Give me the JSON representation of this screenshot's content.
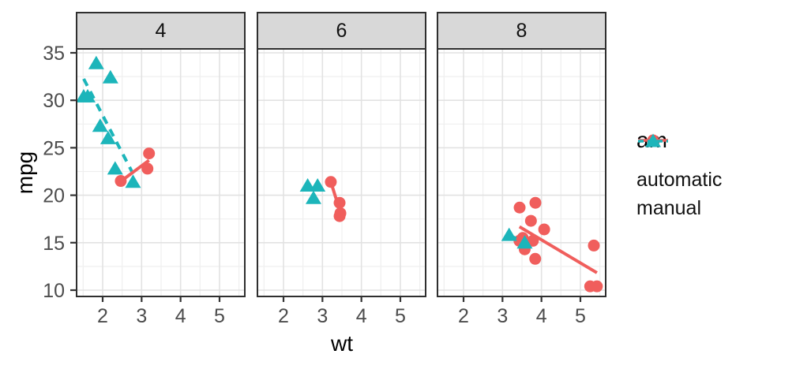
{
  "chart_data": {
    "type": "scatter",
    "title": "",
    "xlabel": "wt",
    "ylabel": "mpg",
    "grid": true,
    "x_ticks": [
      2,
      3,
      4,
      5
    ],
    "y_ticks": [
      35,
      30,
      25,
      20,
      15,
      10
    ],
    "x_minor_ticks": [
      1.5,
      2.5,
      3.5,
      4.5,
      5.5
    ],
    "y_minor_ticks": [
      12.5,
      17.5,
      22.5,
      27.5,
      32.5
    ],
    "xlim": [
      1.33,
      5.65
    ],
    "ylim": [
      9.34,
      35.33
    ],
    "series_colors": {
      "automatic": "#F05E5C",
      "manual": "#1CB5BA"
    },
    "legend": {
      "title": "am",
      "position": "right",
      "entries": [
        {
          "label": "automatic",
          "shape": "circle",
          "linetype": "solid",
          "color": "#F05E5C"
        },
        {
          "label": "manual",
          "shape": "triangle",
          "linetype": "dashed",
          "color": "#1CB5BA"
        }
      ]
    },
    "facets": [
      {
        "label": "4",
        "points": {
          "automatic": [
            [
              2.465,
              21.5
            ],
            [
              3.19,
              24.4
            ],
            [
              3.15,
              22.8
            ]
          ],
          "manual": [
            [
              2.32,
              22.8
            ],
            [
              2.2,
              32.4
            ],
            [
              1.615,
              30.4
            ],
            [
              1.835,
              33.9
            ],
            [
              1.935,
              27.3
            ],
            [
              2.14,
              26.0
            ],
            [
              1.513,
              30.4
            ],
            [
              2.78,
              21.4
            ]
          ]
        },
        "trend": {
          "automatic": [
            [
              2.465,
              21.46
            ],
            [
              3.19,
              23.68
            ]
          ],
          "manual": [
            [
              1.513,
              32.26
            ],
            [
              2.78,
              22.26
            ]
          ]
        }
      },
      {
        "label": "6",
        "points": {
          "automatic": [
            [
              3.215,
              21.4
            ],
            [
              3.46,
              18.1
            ],
            [
              3.44,
              19.2
            ],
            [
              3.44,
              17.8
            ]
          ],
          "manual": [
            [
              2.62,
              21.0
            ],
            [
              2.875,
              21.0
            ],
            [
              2.77,
              19.7
            ]
          ]
        },
        "trend": {
          "automatic": [
            [
              3.215,
              21.41
            ],
            [
              3.46,
              18.19
            ]
          ],
          "manual": [
            [
              2.62,
              20.65
            ],
            [
              2.875,
              20.5
            ]
          ]
        }
      },
      {
        "label": "8",
        "points": {
          "automatic": [
            [
              3.44,
              18.7
            ],
            [
              3.57,
              14.3
            ],
            [
              4.07,
              16.4
            ],
            [
              3.73,
              17.3
            ],
            [
              3.78,
              15.2
            ],
            [
              5.25,
              10.4
            ],
            [
              5.424,
              10.4
            ],
            [
              5.345,
              14.7
            ],
            [
              3.52,
              15.5
            ],
            [
              3.435,
              15.2
            ],
            [
              3.84,
              13.3
            ],
            [
              3.845,
              19.2
            ]
          ],
          "manual": [
            [
              3.17,
              15.8
            ],
            [
              3.57,
              15.0
            ]
          ]
        },
        "trend": {
          "automatic": [
            [
              3.435,
              16.68
            ],
            [
              5.424,
              11.83
            ]
          ],
          "manual": [
            [
              3.17,
              15.8
            ],
            [
              3.57,
              15.0
            ]
          ]
        }
      }
    ]
  },
  "theme": {
    "strip_background": "#D8D8D8",
    "panel_background": "#FFFFFF",
    "panel_border": "#2F2F2F",
    "grid_major": "#E2E2E2",
    "grid_minor": "#EFEFEF",
    "tick_text": "#4D4D4D"
  }
}
